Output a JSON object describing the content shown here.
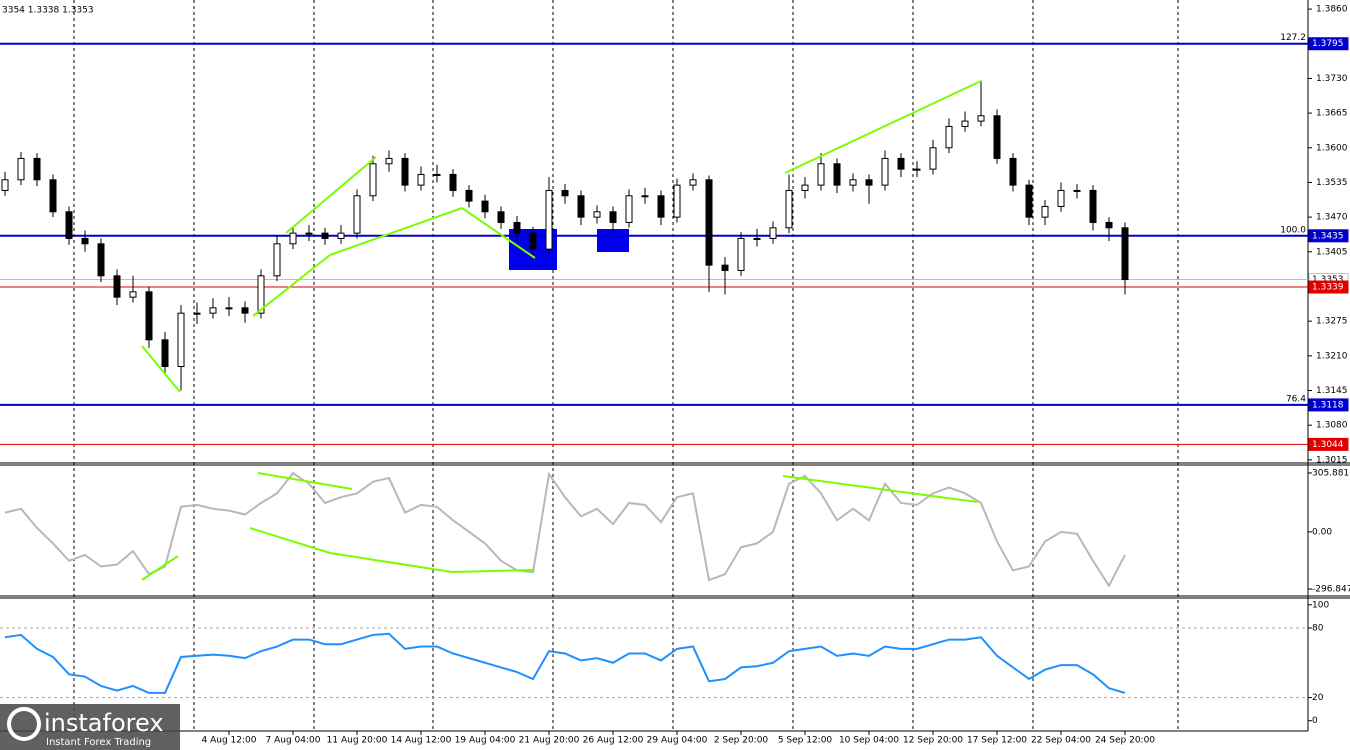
{
  "chart_data": [
    {
      "type": "candlestick",
      "header": "3354 1.3338 1.3353",
      "watermark": {
        "name": "instaforex",
        "tagline": "Instant Forex Trading"
      },
      "categories": [
        null,
        null,
        null,
        null,
        null,
        null,
        null,
        null,
        null,
        null,
        null,
        null,
        null,
        null,
        "4 Aug 12:00",
        null,
        null,
        null,
        "7 Aug 04:00",
        null,
        null,
        null,
        "11 Aug 20:00",
        null,
        null,
        null,
        "14 Aug 12:00",
        null,
        null,
        null,
        "19 Aug 04:00",
        null,
        null,
        null,
        "21 Aug 20:00",
        null,
        null,
        null,
        "26 Aug 12:00",
        null,
        null,
        null,
        "29 Aug 04:00",
        null,
        null,
        null,
        "2 Sep 20:00",
        null,
        null,
        null,
        "5 Sep 12:00",
        null,
        null,
        null,
        "10 Sep 04:00",
        null,
        null,
        null,
        "12 Sep 20:00",
        null,
        null,
        null,
        "17 Sep 12:00",
        null,
        null,
        null,
        "22 Sep 04:00",
        null,
        null,
        null,
        "24 Sep 20:00"
      ],
      "open": [
        1.352,
        1.354,
        1.358,
        1.354,
        1.348,
        1.343,
        1.342,
        1.336,
        1.332,
        1.333,
        1.324,
        1.319,
        1.329,
        1.329,
        1.33,
        1.33,
        1.329,
        1.336,
        1.342,
        1.344,
        1.344,
        1.343,
        1.344,
        1.351,
        1.357,
        1.358,
        1.353,
        1.355,
        1.355,
        1.352,
        1.35,
        1.348,
        1.346,
        1.344,
        1.341,
        1.352,
        1.351,
        1.347,
        1.348,
        1.346,
        1.351,
        1.351,
        1.347,
        1.353,
        1.354,
        1.338,
        1.337,
        1.343,
        1.343,
        1.345,
        1.352,
        1.353,
        1.357,
        1.353,
        1.354,
        1.353,
        1.358,
        1.356,
        1.356,
        1.36,
        1.364,
        1.365,
        1.366,
        1.358,
        1.353,
        1.347,
        1.349,
        1.352,
        1.352,
        1.346,
        1.345
      ],
      "high": [
        1.3555,
        1.3592,
        1.359,
        1.355,
        1.349,
        1.3445,
        1.343,
        1.3372,
        1.336,
        1.334,
        1.3255,
        1.3305,
        1.331,
        1.3318,
        1.332,
        1.3312,
        1.3372,
        1.3435,
        1.3452,
        1.3455,
        1.345,
        1.3455,
        1.3522,
        1.3585,
        1.3595,
        1.359,
        1.3565,
        1.3568,
        1.356,
        1.353,
        1.3512,
        1.349,
        1.3472,
        1.3452,
        1.3545,
        1.3532,
        1.352,
        1.3492,
        1.349,
        1.3522,
        1.3525,
        1.352,
        1.3542,
        1.3552,
        1.3548,
        1.3395,
        1.3442,
        1.3448,
        1.3462,
        1.355,
        1.3545,
        1.359,
        1.358,
        1.3552,
        1.355,
        1.3595,
        1.359,
        1.3575,
        1.3615,
        1.3655,
        1.3668,
        1.3726,
        1.3672,
        1.359,
        1.354,
        1.3502,
        1.3535,
        1.3532,
        1.353,
        1.347,
        1.346
      ],
      "low": [
        1.351,
        1.353,
        1.3528,
        1.347,
        1.3418,
        1.3405,
        1.3348,
        1.3305,
        1.331,
        1.3225,
        1.3175,
        1.3145,
        1.327,
        1.328,
        1.3285,
        1.3272,
        1.328,
        1.335,
        1.341,
        1.3425,
        1.3418,
        1.342,
        1.343,
        1.35,
        1.3555,
        1.3518,
        1.352,
        1.3535,
        1.3508,
        1.3488,
        1.3468,
        1.3448,
        1.3425,
        1.3395,
        1.34,
        1.3495,
        1.3455,
        1.3458,
        1.344,
        1.345,
        1.3495,
        1.3455,
        1.346,
        1.352,
        1.333,
        1.3325,
        1.336,
        1.3415,
        1.342,
        1.344,
        1.3505,
        1.352,
        1.3515,
        1.3518,
        1.3495,
        1.352,
        1.3545,
        1.3545,
        1.355,
        1.359,
        1.363,
        1.364,
        1.357,
        1.3518,
        1.3455,
        1.3455,
        1.348,
        1.3505,
        1.3445,
        1.3425,
        1.3325
      ],
      "close": [
        1.354,
        1.358,
        1.354,
        1.348,
        1.343,
        1.342,
        1.336,
        1.332,
        1.333,
        1.324,
        1.319,
        1.329,
        1.329,
        1.33,
        1.33,
        1.329,
        1.336,
        1.342,
        1.344,
        1.344,
        1.343,
        1.344,
        1.351,
        1.357,
        1.358,
        1.353,
        1.355,
        1.355,
        1.352,
        1.35,
        1.348,
        1.346,
        1.344,
        1.341,
        1.352,
        1.351,
        1.347,
        1.348,
        1.346,
        1.351,
        1.351,
        1.347,
        1.353,
        1.354,
        1.338,
        1.337,
        1.343,
        1.343,
        1.345,
        1.352,
        1.353,
        1.357,
        1.353,
        1.354,
        1.353,
        1.358,
        1.356,
        1.356,
        1.36,
        1.364,
        1.365,
        1.366,
        1.358,
        1.353,
        1.347,
        1.349,
        1.352,
        1.352,
        1.346,
        1.345,
        1.3353
      ],
      "ylim": [
        1.3011,
        1.3877
      ],
      "yticks": [
        {
          "value": 1.386,
          "label": "1.3860"
        },
        {
          "value": 1.373,
          "label": "1.3730"
        },
        {
          "value": 1.3665,
          "label": "1.3665"
        },
        {
          "value": 1.36,
          "label": "1.3600"
        },
        {
          "value": 1.3535,
          "label": "1.3535"
        },
        {
          "value": 1.347,
          "label": "1.3470"
        },
        {
          "value": 1.3405,
          "label": "1.3405"
        },
        {
          "value": 1.3275,
          "label": "1.3275"
        },
        {
          "value": 1.321,
          "label": "1.3210"
        },
        {
          "value": 1.3145,
          "label": "1.3145"
        },
        {
          "value": 1.308,
          "label": "1.3080"
        },
        {
          "value": 1.3015,
          "label": "1.3015"
        }
      ],
      "levels": [
        {
          "value": 1.3795,
          "label": "1.3795",
          "note": "127.2",
          "color": "#0000cc"
        },
        {
          "value": 1.3435,
          "label": "1.3435",
          "note": "100.0",
          "color": "#0000cc"
        },
        {
          "value": 1.3118,
          "label": "1.3118",
          "note": "76.4",
          "color": "#0000cc"
        },
        {
          "value": 1.3353,
          "label": "1.3353",
          "color": "#c0c0c0"
        },
        {
          "value": 1.3339,
          "label": "1.3339",
          "color": "#e00000"
        },
        {
          "value": 1.3044,
          "label": "1.3044",
          "color": "#e00000"
        }
      ]
    },
    {
      "type": "line",
      "color": "#b8b8b8",
      "values": [
        100,
        120,
        20,
        -60,
        -150,
        -120,
        -180,
        -170,
        -100,
        -220,
        -180,
        130,
        140,
        120,
        110,
        90,
        150,
        200,
        305,
        250,
        150,
        180,
        200,
        260,
        280,
        100,
        140,
        130,
        60,
        0,
        -60,
        -150,
        -200,
        -210,
        300,
        180,
        80,
        120,
        40,
        150,
        140,
        50,
        180,
        200,
        -250,
        -220,
        -80,
        -60,
        0,
        250,
        290,
        200,
        60,
        120,
        60,
        250,
        150,
        140,
        200,
        230,
        200,
        150,
        -50,
        -200,
        -180,
        -50,
        0,
        -10,
        -150,
        -280,
        -120
      ],
      "ylim": [
        -328,
        342
      ],
      "yticks": [
        305.8816,
        {
          "value": 0,
          "label": "0.00"
        },
        -296.8474
      ]
    },
    {
      "type": "line",
      "color": "#1e90ff",
      "values": [
        72,
        74,
        62,
        55,
        40,
        38,
        30,
        26,
        30,
        24,
        24,
        55,
        56,
        57,
        56,
        54,
        60,
        64,
        70,
        70,
        66,
        66,
        70,
        74,
        75,
        62,
        64,
        64,
        58,
        54,
        50,
        46,
        42,
        36,
        60,
        58,
        52,
        54,
        50,
        58,
        58,
        52,
        62,
        64,
        34,
        36,
        46,
        47,
        50,
        60,
        62,
        64,
        56,
        58,
        56,
        64,
        62,
        62,
        66,
        70,
        70,
        72,
        56,
        46,
        36,
        44,
        48,
        48,
        40,
        28,
        24
      ],
      "ylim": [
        -8,
        105
      ],
      "yticks": [
        0,
        20,
        80,
        100
      ],
      "levels": [
        20,
        80
      ]
    }
  ]
}
